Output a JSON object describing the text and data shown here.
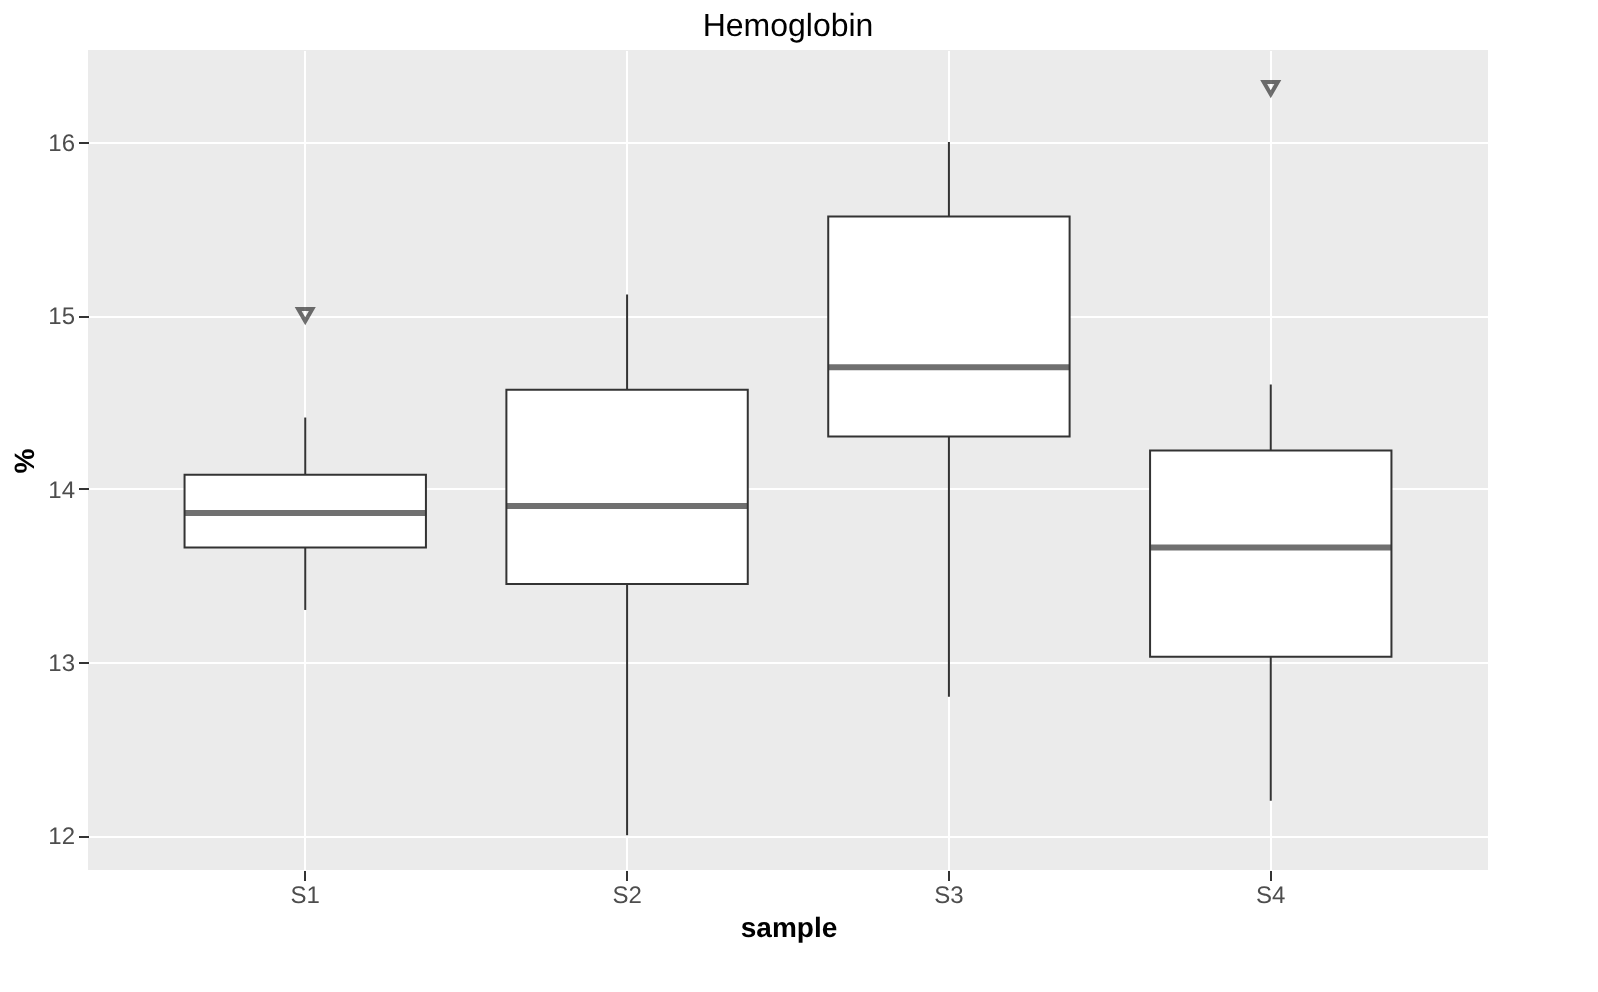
{
  "chart_data": {
    "type": "box",
    "title": "Hemoglobin",
    "xlabel": "sample",
    "ylabel": "%",
    "categories": [
      "S1",
      "S2",
      "S3",
      "S4"
    ],
    "boxes": [
      {
        "low": 13.3,
        "q1": 13.66,
        "median": 13.86,
        "q3": 14.08,
        "high": 14.41,
        "outliers": [
          15.0
        ]
      },
      {
        "low": 12.0,
        "q1": 13.45,
        "median": 13.9,
        "q3": 14.57,
        "high": 15.12
      },
      {
        "low": 12.8,
        "q1": 14.3,
        "median": 14.7,
        "q3": 15.57,
        "high": 16.0
      },
      {
        "low": 12.2,
        "q1": 13.03,
        "median": 13.66,
        "q3": 14.22,
        "high": 14.6,
        "outliers": [
          16.31
        ]
      }
    ],
    "ylim": [
      11.8,
      16.53
    ],
    "yticks": [
      12,
      13,
      14,
      15,
      16
    ],
    "grid": true,
    "marker": "triangle"
  }
}
